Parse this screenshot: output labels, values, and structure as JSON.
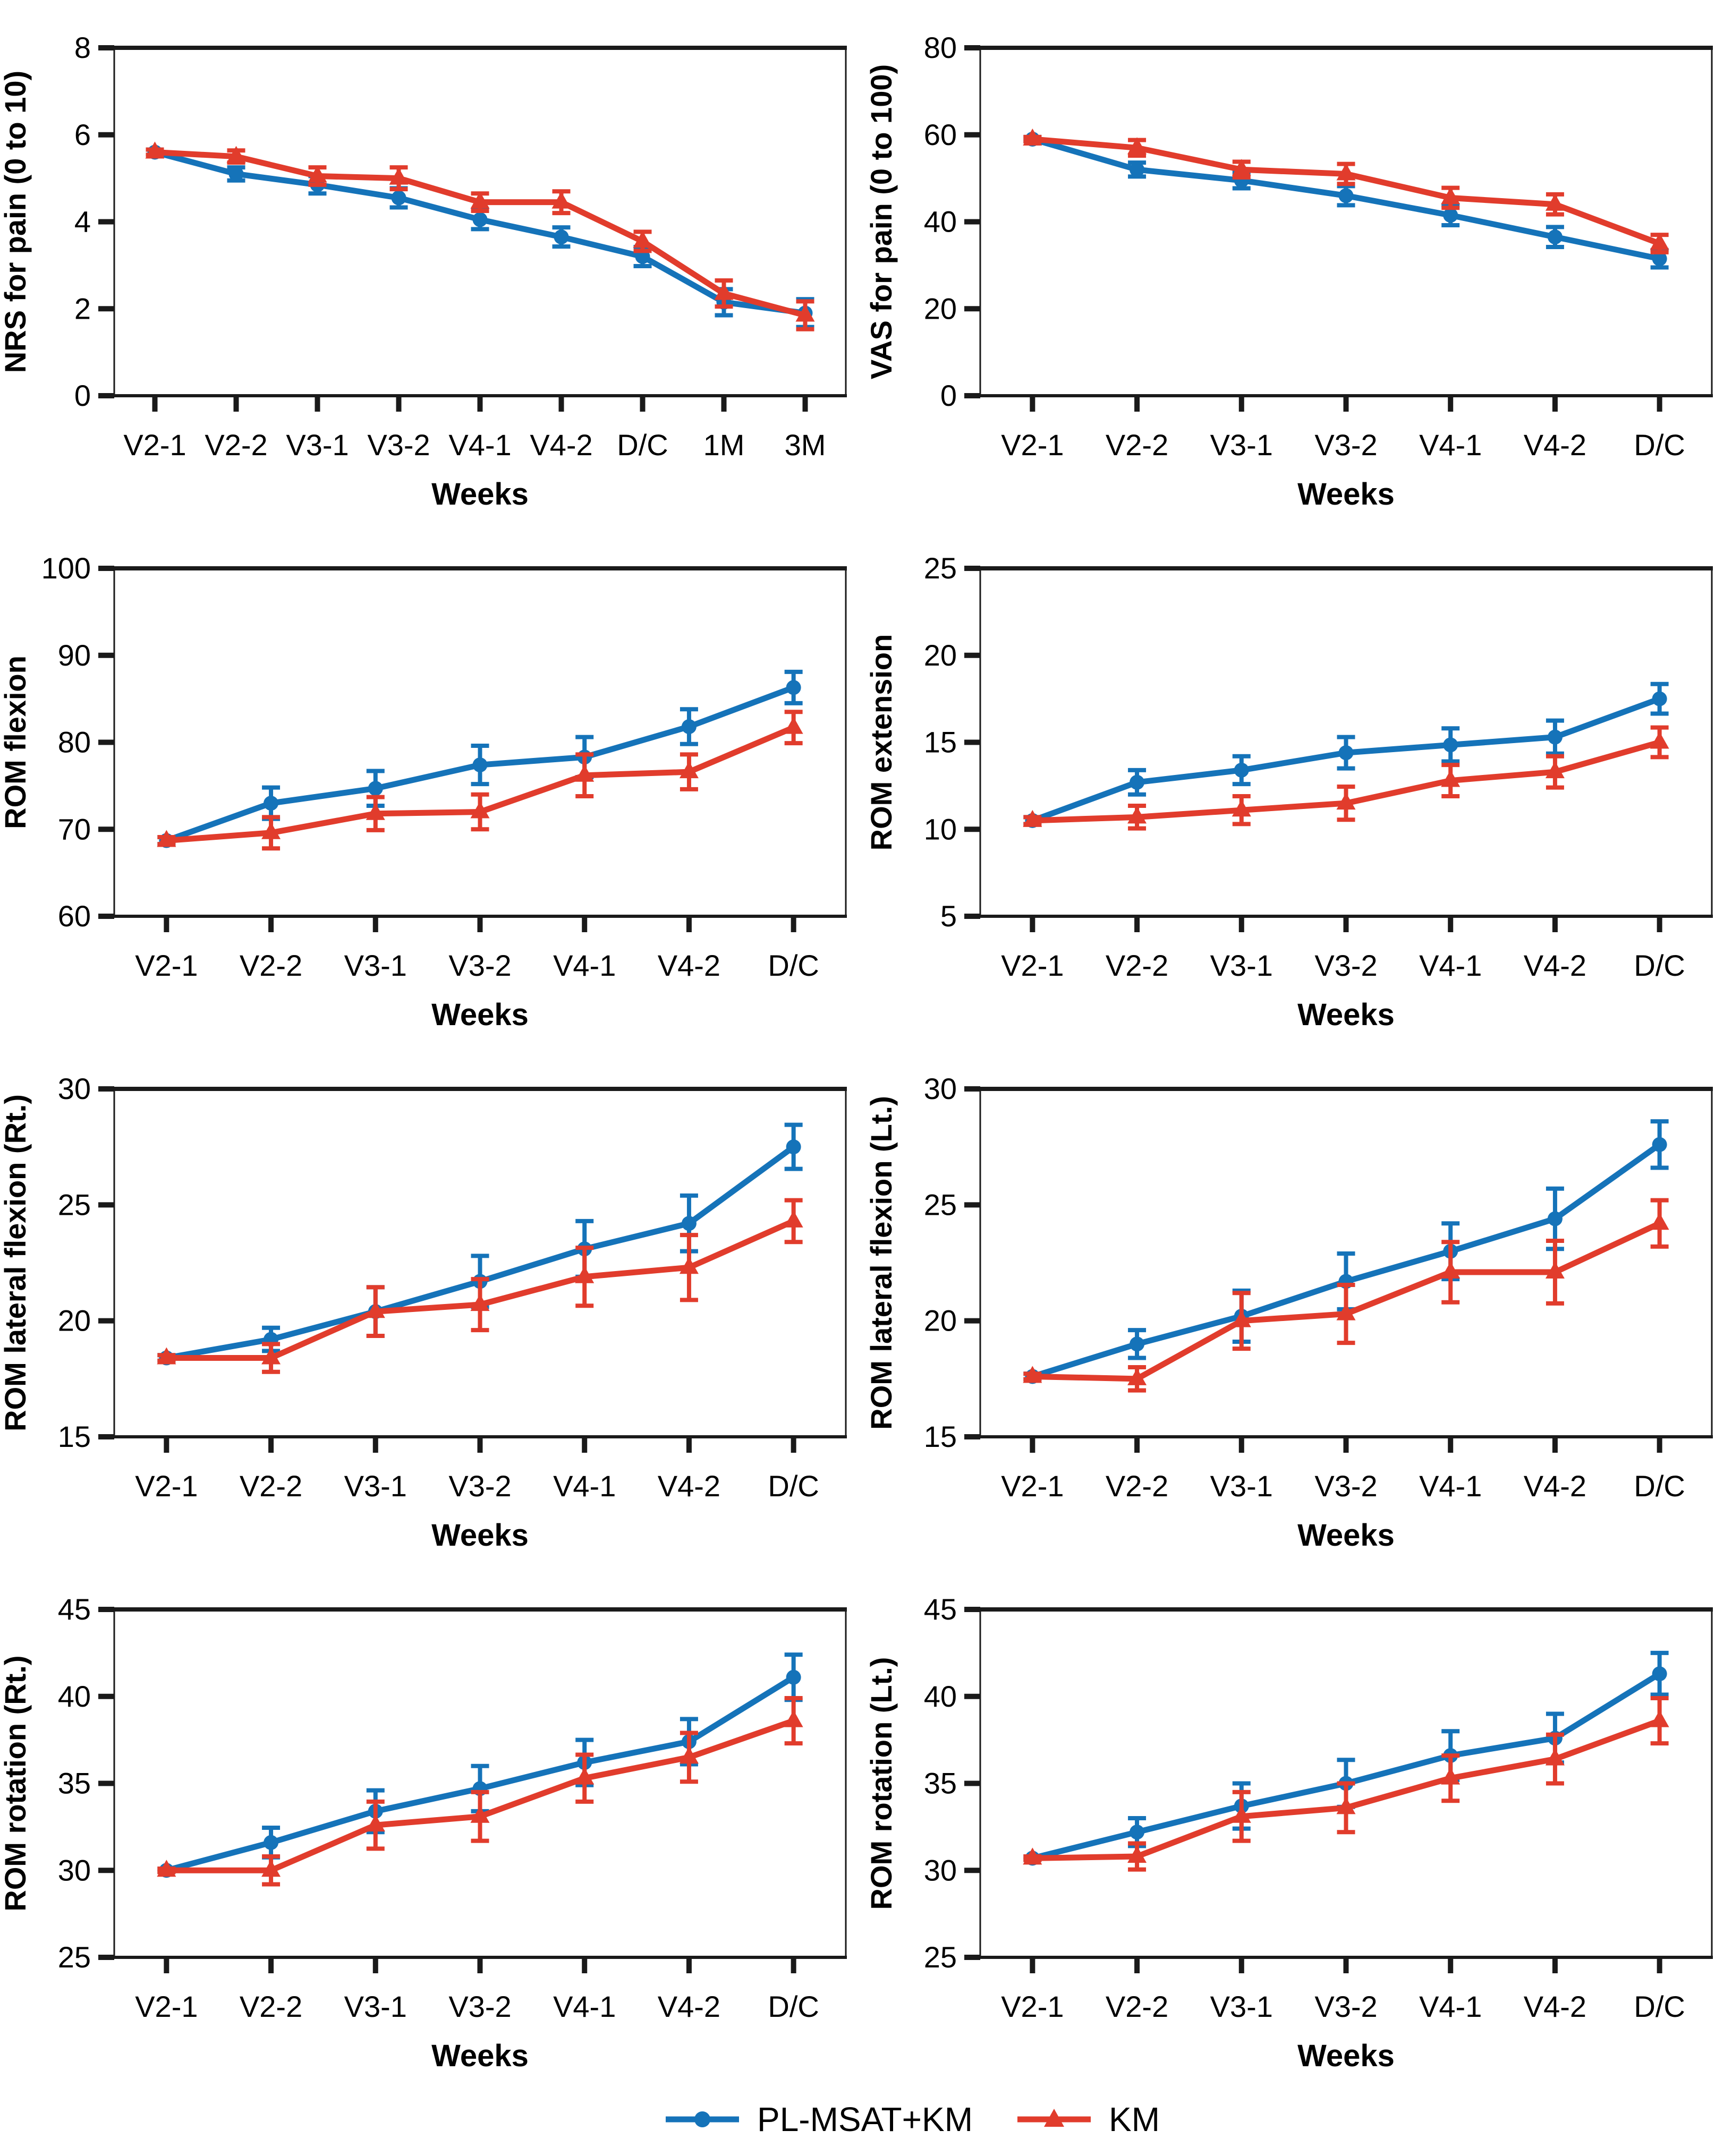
{
  "figure": {
    "xlabel": "Weeks",
    "background": "#ffffff"
  },
  "colors": {
    "series_blue": "#1573b9",
    "series_red": "#e13c2c",
    "axis": "#1a1a1a",
    "text": "#000000"
  },
  "legend": {
    "entries": [
      {
        "label": "PL-MSAT+KM",
        "color": "#1573b9",
        "marker": "circle"
      },
      {
        "label": "KM",
        "color": "#e13c2c",
        "marker": "triangle"
      }
    ]
  },
  "chart_data": [
    {
      "id": "nrs-pain",
      "type": "line",
      "ylabel": "NRS for pain (0 to 10)",
      "xlabel": "Weeks",
      "categories": [
        "V2-1",
        "V2-2",
        "V3-1",
        "V3-2",
        "V4-1",
        "V4-2",
        "D/C",
        "1M",
        "3M"
      ],
      "ylim": [
        0,
        8
      ],
      "yticks": [
        0,
        2,
        4,
        6,
        8
      ],
      "series": [
        {
          "name": "PL-MSAT+KM",
          "color": "#1573b9",
          "marker": "circle",
          "values": [
            5.6,
            5.1,
            4.85,
            4.55,
            4.05,
            3.65,
            3.2,
            2.15,
            1.9
          ],
          "errors": [
            0.06,
            0.15,
            0.2,
            0.22,
            0.22,
            0.22,
            0.22,
            0.3,
            0.32
          ]
        },
        {
          "name": "KM",
          "color": "#e13c2c",
          "marker": "triangle",
          "values": [
            5.6,
            5.5,
            5.05,
            5.0,
            4.45,
            4.45,
            3.55,
            2.35,
            1.85
          ],
          "errors": [
            0.06,
            0.14,
            0.2,
            0.25,
            0.2,
            0.25,
            0.22,
            0.3,
            0.32
          ]
        }
      ]
    },
    {
      "id": "vas-pain",
      "type": "line",
      "ylabel": "VAS for pain (0 to 100)",
      "xlabel": "Weeks",
      "categories": [
        "V2-1",
        "V2-2",
        "V3-1",
        "V3-2",
        "V4-1",
        "V4-2",
        "D/C"
      ],
      "ylim": [
        0,
        80
      ],
      "yticks": [
        0,
        20,
        40,
        60,
        80
      ],
      "series": [
        {
          "name": "PL-MSAT+KM",
          "color": "#1573b9",
          "marker": "circle",
          "values": [
            59,
            52,
            49.5,
            46,
            41.5,
            36.5,
            31.5
          ],
          "errors": [
            0.5,
            1.6,
            1.8,
            2.2,
            2.3,
            2.3,
            2.0
          ]
        },
        {
          "name": "KM",
          "color": "#e13c2c",
          "marker": "triangle",
          "values": [
            59,
            57,
            52,
            51,
            45.5,
            44,
            35
          ],
          "errors": [
            0.5,
            1.8,
            1.8,
            2.3,
            2.3,
            2.3,
            2.0
          ]
        }
      ]
    },
    {
      "id": "rom-flexion",
      "type": "line",
      "ylabel": "ROM flexion",
      "xlabel": "Weeks",
      "categories": [
        "V2-1",
        "V2-2",
        "V3-1",
        "V3-2",
        "V4-1",
        "V4-2",
        "D/C"
      ],
      "ylim": [
        60,
        100
      ],
      "yticks": [
        60,
        70,
        80,
        90,
        100
      ],
      "series": [
        {
          "name": "PL-MSAT+KM",
          "color": "#1573b9",
          "marker": "circle",
          "values": [
            68.7,
            73.0,
            74.7,
            77.4,
            78.3,
            81.8,
            86.3
          ],
          "errors": [
            0.4,
            1.8,
            2.0,
            2.2,
            2.3,
            2.0,
            1.8
          ]
        },
        {
          "name": "KM",
          "color": "#e13c2c",
          "marker": "triangle",
          "values": [
            68.7,
            69.6,
            71.8,
            72.0,
            76.2,
            76.6,
            81.7
          ],
          "errors": [
            0.4,
            1.8,
            1.9,
            2.0,
            2.4,
            2.0,
            1.8
          ]
        }
      ]
    },
    {
      "id": "rom-extension",
      "type": "line",
      "ylabel": "ROM extension",
      "xlabel": "Weeks",
      "categories": [
        "V2-1",
        "V2-2",
        "V3-1",
        "V3-2",
        "V4-1",
        "V4-2",
        "D/C"
      ],
      "ylim": [
        5,
        25
      ],
      "yticks": [
        5,
        10,
        15,
        20,
        25
      ],
      "series": [
        {
          "name": "PL-MSAT+KM",
          "color": "#1573b9",
          "marker": "circle",
          "values": [
            10.5,
            12.7,
            13.4,
            14.4,
            14.85,
            15.3,
            17.5
          ],
          "errors": [
            0.2,
            0.7,
            0.8,
            0.9,
            0.95,
            0.95,
            0.85
          ]
        },
        {
          "name": "KM",
          "color": "#e13c2c",
          "marker": "triangle",
          "values": [
            10.5,
            10.7,
            11.1,
            11.5,
            12.8,
            13.3,
            15.0
          ],
          "errors": [
            0.2,
            0.65,
            0.8,
            0.95,
            0.9,
            0.9,
            0.85
          ]
        }
      ]
    },
    {
      "id": "rom-lateral-flexion-rt",
      "type": "line",
      "ylabel": "ROM lateral flexion (Rt.)",
      "xlabel": "Weeks",
      "categories": [
        "V2-1",
        "V2-2",
        "V3-1",
        "V3-2",
        "V4-1",
        "V4-2",
        "D/C"
      ],
      "ylim": [
        15,
        30
      ],
      "yticks": [
        15,
        20,
        25,
        30
      ],
      "series": [
        {
          "name": "PL-MSAT+KM",
          "color": "#1573b9",
          "marker": "circle",
          "values": [
            18.4,
            19.2,
            20.4,
            21.7,
            23.1,
            24.2,
            27.5
          ],
          "errors": [
            0.12,
            0.5,
            1.05,
            1.1,
            1.2,
            1.2,
            0.95
          ]
        },
        {
          "name": "KM",
          "color": "#e13c2c",
          "marker": "triangle",
          "values": [
            18.4,
            18.4,
            20.4,
            20.7,
            21.9,
            22.3,
            24.3
          ],
          "errors": [
            0.12,
            0.6,
            1.05,
            1.1,
            1.25,
            1.4,
            0.9
          ]
        }
      ]
    },
    {
      "id": "rom-lateral-flexion-lt",
      "type": "line",
      "ylabel": "ROM lateral flexion (Lt.)",
      "xlabel": "Weeks",
      "categories": [
        "V2-1",
        "V2-2",
        "V3-1",
        "V3-2",
        "V4-1",
        "V4-2",
        "D/C"
      ],
      "ylim": [
        15,
        30
      ],
      "yticks": [
        15,
        20,
        25,
        30
      ],
      "series": [
        {
          "name": "PL-MSAT+KM",
          "color": "#1573b9",
          "marker": "circle",
          "values": [
            17.6,
            19.0,
            20.2,
            21.7,
            23.0,
            24.4,
            27.6
          ],
          "errors": [
            0.12,
            0.6,
            1.1,
            1.2,
            1.2,
            1.3,
            1.0
          ]
        },
        {
          "name": "KM",
          "color": "#e13c2c",
          "marker": "triangle",
          "values": [
            17.6,
            17.5,
            20.0,
            20.3,
            22.1,
            22.1,
            24.2
          ],
          "errors": [
            0.12,
            0.5,
            1.2,
            1.25,
            1.3,
            1.35,
            1.0
          ]
        }
      ]
    },
    {
      "id": "rom-rotation-rt",
      "type": "line",
      "ylabel": "ROM rotation (Rt.)",
      "xlabel": "Weeks",
      "categories": [
        "V2-1",
        "V2-2",
        "V3-1",
        "V3-2",
        "V4-1",
        "V4-2",
        "D/C"
      ],
      "ylim": [
        25,
        45
      ],
      "yticks": [
        25,
        30,
        35,
        40,
        45
      ],
      "series": [
        {
          "name": "PL-MSAT+KM",
          "color": "#1573b9",
          "marker": "circle",
          "values": [
            30.0,
            31.6,
            33.4,
            34.7,
            36.2,
            37.4,
            41.1
          ],
          "errors": [
            0.1,
            0.85,
            1.2,
            1.3,
            1.3,
            1.3,
            1.3
          ]
        },
        {
          "name": "KM",
          "color": "#e13c2c",
          "marker": "triangle",
          "values": [
            30.0,
            30.0,
            32.6,
            33.1,
            35.3,
            36.5,
            38.6
          ],
          "errors": [
            0.1,
            0.8,
            1.35,
            1.4,
            1.35,
            1.4,
            1.3
          ]
        }
      ]
    },
    {
      "id": "rom-rotation-lt",
      "type": "line",
      "ylabel": "ROM rotation (Lt.)",
      "xlabel": "Weeks",
      "categories": [
        "V2-1",
        "V2-2",
        "V3-1",
        "V3-2",
        "V4-1",
        "V4-2",
        "D/C"
      ],
      "ylim": [
        25,
        45
      ],
      "yticks": [
        25,
        30,
        35,
        40,
        45
      ],
      "series": [
        {
          "name": "PL-MSAT+KM",
          "color": "#1573b9",
          "marker": "circle",
          "values": [
            30.7,
            32.2,
            33.7,
            35.0,
            36.6,
            37.6,
            41.3
          ],
          "errors": [
            0.1,
            0.8,
            1.3,
            1.35,
            1.4,
            1.4,
            1.2
          ]
        },
        {
          "name": "KM",
          "color": "#e13c2c",
          "marker": "triangle",
          "values": [
            30.7,
            30.8,
            33.1,
            33.6,
            35.3,
            36.4,
            38.6
          ],
          "errors": [
            0.1,
            0.75,
            1.4,
            1.4,
            1.3,
            1.4,
            1.3
          ]
        }
      ]
    }
  ]
}
